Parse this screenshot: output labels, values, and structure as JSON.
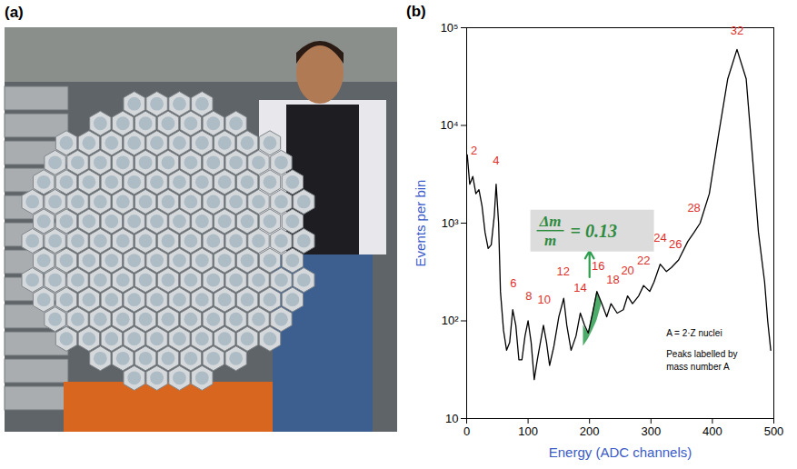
{
  "photo_panel": {
    "letter": "(a)"
  },
  "chart_data": {
    "type": "line",
    "panel_letter": "(b)",
    "x_label": "Energy (ADC channels)",
    "y_label": "Events per bin",
    "log": "y",
    "xlim": [
      0,
      500
    ],
    "xticks": [
      0,
      100,
      200,
      300,
      400,
      500
    ],
    "ylim": [
      10,
      100000
    ],
    "yticks": [
      10,
      {
        "value": 100,
        "label": "10²"
      },
      {
        "value": 1000,
        "label": "10³"
      },
      {
        "value": 10000,
        "label": "10⁴"
      },
      {
        "value": 100000,
        "label": "10⁵"
      }
    ],
    "color": "#000000",
    "x": [
      1,
      5,
      10,
      15,
      20,
      25,
      30,
      35,
      40,
      45,
      48,
      52,
      55,
      60,
      65,
      70,
      75,
      80,
      85,
      90,
      95,
      100,
      105,
      110,
      115,
      125,
      130,
      135,
      142,
      150,
      158,
      163,
      170,
      178,
      185,
      192,
      198,
      205,
      212,
      220,
      228,
      235,
      245,
      255,
      262,
      270,
      280,
      288,
      298,
      305,
      315,
      325,
      333,
      345,
      360,
      370,
      380,
      395,
      410,
      425,
      440,
      455,
      465,
      475,
      485,
      490,
      495
    ],
    "values": [
      5000,
      2500,
      3000,
      2000,
      2200,
      1500,
      800,
      550,
      600,
      1200,
      2500,
      1000,
      200,
      80,
      50,
      60,
      130,
      90,
      40,
      40,
      70,
      100,
      60,
      25,
      40,
      90,
      60,
      35,
      55,
      110,
      170,
      90,
      50,
      70,
      120,
      90,
      75,
      120,
      200,
      150,
      110,
      150,
      120,
      130,
      180,
      150,
      180,
      230,
      200,
      250,
      380,
      320,
      350,
      420,
      650,
      800,
      1000,
      2000,
      8000,
      30000,
      60000,
      30000,
      5000,
      800,
      250,
      100,
      50
    ],
    "peak_labels": {
      "labels": [
        2,
        4,
        6,
        8,
        10,
        12,
        14,
        16,
        18,
        20,
        22,
        24,
        26,
        28,
        32
      ],
      "x": [
        12,
        48,
        76,
        101,
        126,
        157,
        185,
        214,
        238,
        262,
        288,
        315,
        340,
        370,
        440
      ],
      "y": [
        5000,
        4000,
        220,
        165,
        150,
        290,
        200,
        330,
        240,
        300,
        380,
        650,
        560,
        1300,
        85000
      ],
      "color": "#e0302a"
    },
    "shaded_region": {
      "x": [
        190,
        198,
        205,
        212,
        220
      ],
      "y_bottom": [
        55,
        65,
        80,
        100,
        150
      ],
      "y_top": [
        90,
        75,
        120,
        200,
        150
      ],
      "color": "#2e9e4f"
    },
    "annotation": {
      "numerator": "Δm",
      "denominator": "m",
      "equals": "= 0.13",
      "x": 205,
      "y": 830,
      "color": "#2e8b3e"
    },
    "arrow": {
      "x": 200,
      "y1": 280,
      "y2": 520,
      "color": "#2e9e4f"
    },
    "notes": {
      "lines": [
        "A = 2·Z nuclei",
        "Peaks labelled by",
        "mass number A"
      ],
      "x": 325,
      "y": [
        75,
        45,
        34
      ]
    }
  }
}
